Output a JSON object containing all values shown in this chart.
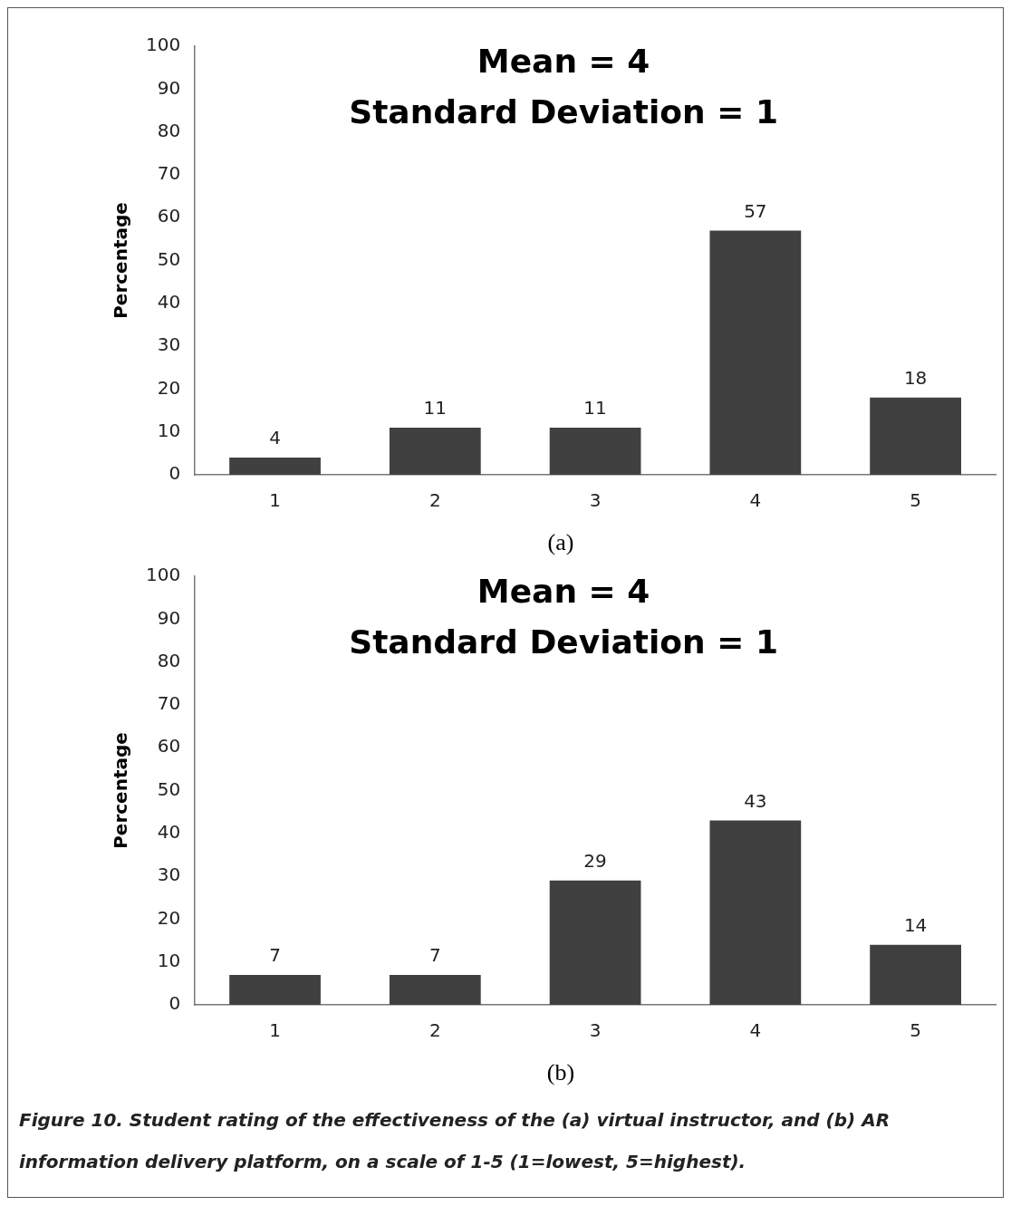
{
  "chart_data": [
    {
      "type": "bar",
      "title": "Mean = 4",
      "subtitle": "Standard Deviation = 1",
      "ylabel": "Percentage",
      "categories": [
        "1",
        "2",
        "3",
        "4",
        "5"
      ],
      "values": [
        4,
        11,
        11,
        57,
        18
      ],
      "color": "#404040",
      "ylim": [
        0,
        100
      ],
      "yticks": [
        0,
        10,
        20,
        30,
        40,
        50,
        60,
        70,
        80,
        90,
        100
      ],
      "data_labels": true,
      "annotations": [
        "(a)"
      ]
    },
    {
      "type": "bar",
      "title": "Mean = 4",
      "subtitle": "Standard Deviation = 1",
      "ylabel": "Percentage",
      "categories": [
        "1",
        "2",
        "3",
        "4",
        "5"
      ],
      "values": [
        7,
        7,
        29,
        43,
        14
      ],
      "color": "#404040",
      "ylim": [
        0,
        100
      ],
      "yticks": [
        0,
        10,
        20,
        30,
        40,
        50,
        60,
        70,
        80,
        90,
        100
      ],
      "data_labels": true,
      "annotations": [
        "(b)",
        "Figure 10. Student rating of the effectiveness of the (a) virtual instructor, and (b) AR information delivery platform, on a scale of 1-5 (1=lowest, 5=highest)."
      ]
    }
  ]
}
